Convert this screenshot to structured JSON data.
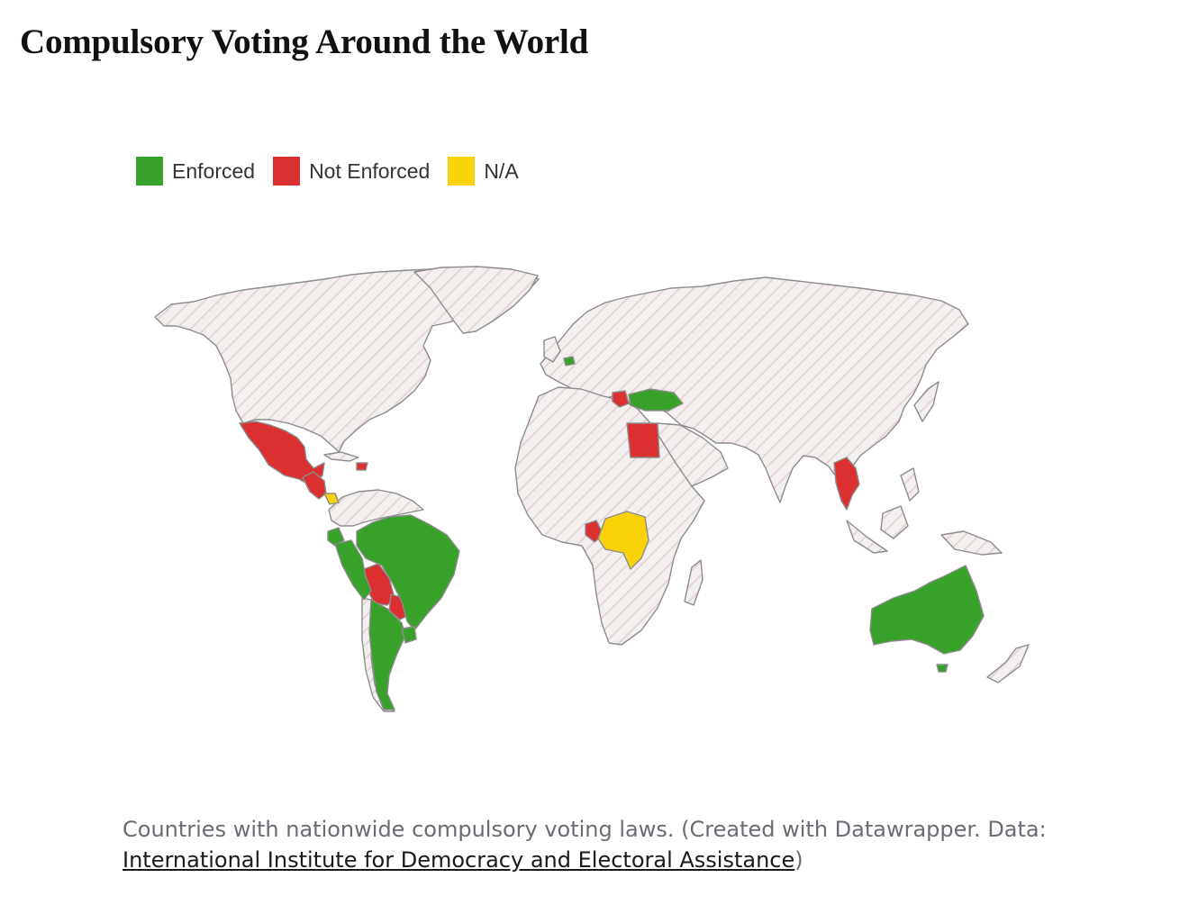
{
  "title": "Compulsory Voting Around the World",
  "legend": [
    {
      "label": "Enforced",
      "color": "#38a12a"
    },
    {
      "label": "Not Enforced",
      "color": "#dc3030"
    },
    {
      "label": "N/A",
      "color": "#fad20a"
    }
  ],
  "colors": {
    "no_law_fill": "#f4efef",
    "hatch": "#e3d2d2",
    "border": "#8c8c8c"
  },
  "regions": [
    {
      "name": "Mexico",
      "status": "Not Enforced"
    },
    {
      "name": "Central America",
      "status": "Not Enforced"
    },
    {
      "name": "Costa Rica",
      "status": "N/A"
    },
    {
      "name": "Dominican Republic",
      "status": "Not Enforced"
    },
    {
      "name": "Brazil",
      "status": "Enforced"
    },
    {
      "name": "Peru",
      "status": "Enforced"
    },
    {
      "name": "Ecuador",
      "status": "Enforced"
    },
    {
      "name": "Bolivia",
      "status": "Not Enforced"
    },
    {
      "name": "Paraguay",
      "status": "Not Enforced"
    },
    {
      "name": "Argentina",
      "status": "Enforced"
    },
    {
      "name": "Uruguay",
      "status": "Enforced"
    },
    {
      "name": "Belgium",
      "status": "Enforced"
    },
    {
      "name": "Luxembourg",
      "status": "Enforced"
    },
    {
      "name": "Greece",
      "status": "Not Enforced"
    },
    {
      "name": "Turkey",
      "status": "Enforced"
    },
    {
      "name": "Egypt",
      "status": "Not Enforced"
    },
    {
      "name": "Gabon",
      "status": "Not Enforced"
    },
    {
      "name": "DR Congo",
      "status": "N/A"
    },
    {
      "name": "Thailand",
      "status": "Not Enforced"
    },
    {
      "name": "Australia",
      "status": "Enforced"
    }
  ],
  "caption": {
    "text": "Countries with nationwide compulsory voting laws. (Created with Datawrapper. Data: ",
    "link": "International Institute for Democracy and Electoral Assistance",
    "close": ")"
  }
}
